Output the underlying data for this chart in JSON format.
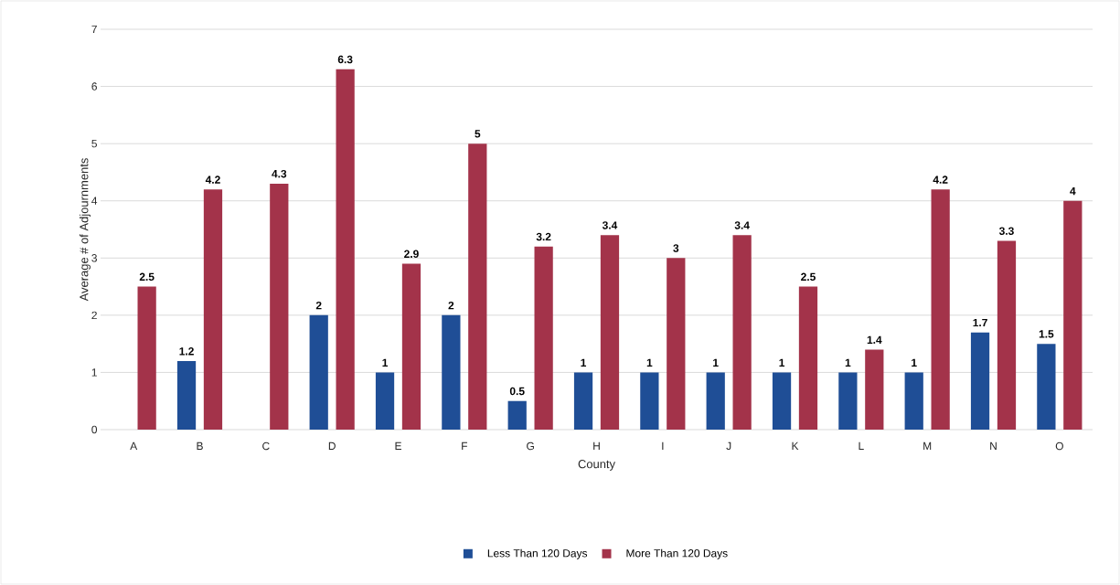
{
  "chart_data": {
    "type": "bar",
    "xlabel": "County",
    "ylabel": "Average # of Adjournments",
    "categories": [
      "A",
      "B",
      "C",
      "D",
      "E",
      "F",
      "G",
      "H",
      "I",
      "J",
      "K",
      "L",
      "M",
      "N",
      "O"
    ],
    "series": [
      {
        "name": "Less Than 120 Days",
        "color": "#1f4e96",
        "values": [
          null,
          1.2,
          null,
          2,
          1,
          2,
          0.5,
          1,
          1,
          1,
          1,
          1,
          1,
          1.7,
          1.5
        ]
      },
      {
        "name": "More Than 120 Days",
        "color": "#a3334a",
        "values": [
          2.5,
          4.2,
          4.3,
          6.3,
          2.9,
          5,
          3.2,
          3.4,
          3,
          3.4,
          2.5,
          1.4,
          4.2,
          3.3,
          4
        ]
      }
    ],
    "ylim": [
      0,
      7
    ],
    "yticks": [
      0,
      1,
      2,
      3,
      4,
      5,
      6,
      7
    ],
    "grid": "y",
    "legend": "bottom",
    "data_labels": true
  }
}
